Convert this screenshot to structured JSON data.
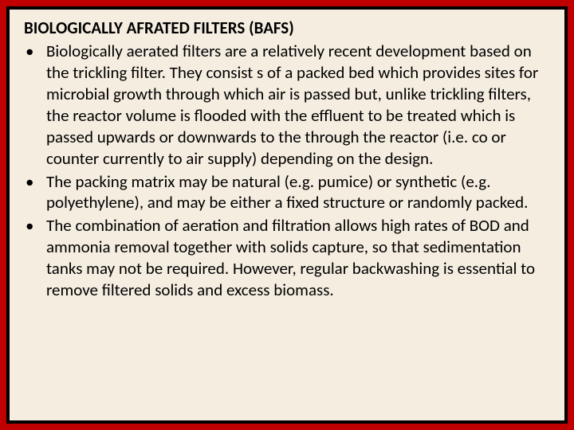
{
  "colors": {
    "outer_border": "#c00000",
    "inner_border": "#000000",
    "content_bg": "#f5ede0",
    "text": "#000000"
  },
  "typography": {
    "font_family": "Calibri, Arial, sans-serif",
    "title_fontsize": 21,
    "title_weight": "bold",
    "body_fontsize": 21,
    "line_height": 1.28
  },
  "title": "BIOLOGICALLY AFRATED FILTERS (BAFS)",
  "bullets": [
    " Biologically aerated filters are a relatively recent development based on the trickling filter. They consist s of a packed bed which provides sites for microbial growth through which air is passed but, unlike trickling filters, the reactor volume is flooded with the effluent to be treated which is passed upwards or downwards to the through the reactor (i.e. co or counter currently to air supply) depending on the design.",
    " The packing matrix may be natural (e.g. pumice) or synthetic (e.g. polyethylene), and may be either a fixed structure or randomly packed.",
    "The combination of aeration and filtration allows high rates of BOD and ammonia removal together with solids capture, so that sedimentation tanks may not be required. However, regular backwashing is essential to remove filtered solids and excess biomass."
  ]
}
